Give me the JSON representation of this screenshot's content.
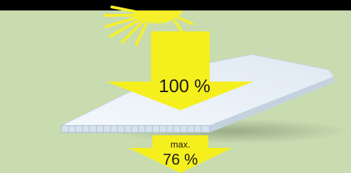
{
  "labels": {
    "incoming": "100 %",
    "transmitted_prefix": "max.",
    "transmitted": "76 %"
  }
}
